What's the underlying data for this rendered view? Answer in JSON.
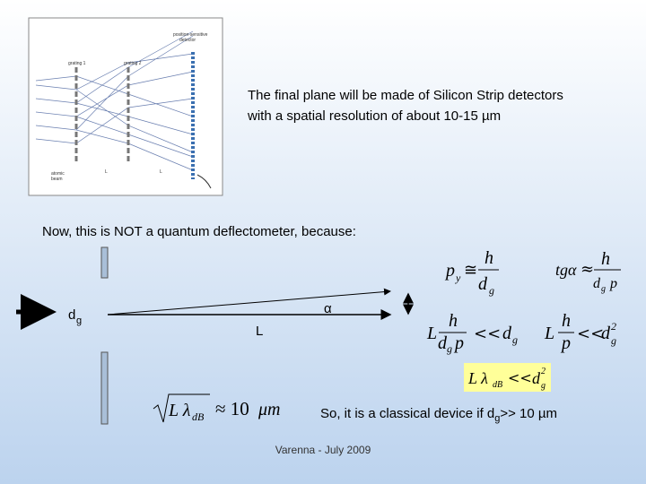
{
  "figure": {
    "labels": [
      "position-sensitive",
      "detector",
      "grating 1",
      "grating 2",
      "atomic",
      "beam",
      "L",
      "L"
    ]
  },
  "note": [
    "The final plane will be made of Silicon Strip detectors",
    "with a spatial resolution of about 10-15 µm"
  ],
  "statement": "Now, this is NOT a quantum deflectometer, because:",
  "sketch": {
    "d": "d",
    "g": "g",
    "L": "L",
    "alpha": "α"
  },
  "formulas": [
    [
      "p",
      "y",
      "≅",
      "h",
      "d",
      "g"
    ],
    [
      "tgα",
      "≈",
      "h",
      "d",
      "g",
      "p"
    ],
    [
      "L",
      "h",
      "d",
      "g",
      "p",
      "<<",
      "d",
      "g"
    ],
    [
      "L",
      "h",
      "p",
      "<<",
      "d",
      "g",
      "2"
    ],
    [
      "L λ",
      "dB",
      "<<",
      "d",
      "g",
      "2"
    ],
    [
      "L λ",
      "dB",
      "≈ 10",
      "μm"
    ]
  ],
  "conclusion": {
    "text": "So, it is a classical device if d",
    "sub": "g",
    "tail": ">> 10 µm"
  },
  "footer": "Varenna - July 2009"
}
